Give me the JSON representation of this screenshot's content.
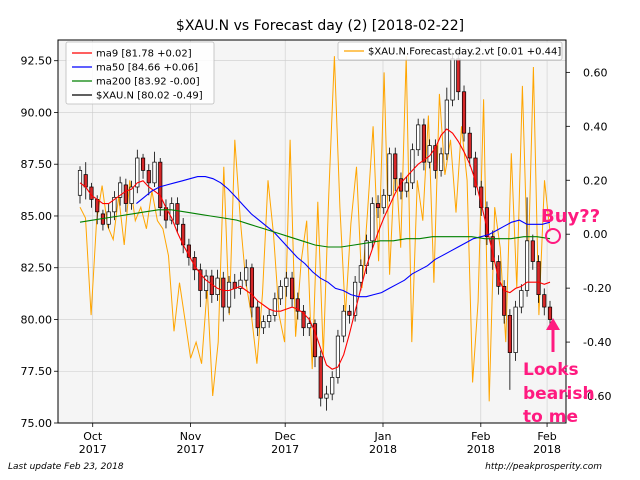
{
  "chart_data": {
    "type": "candlestick",
    "title": "$XAU.N vs Forecast day (2)  [2018-02-22]",
    "y_left": {
      "ylim": [
        75.0,
        93.5
      ],
      "ticks": [
        "75.00",
        "77.50",
        "80.00",
        "82.50",
        "85.00",
        "87.50",
        "90.00",
        "92.50"
      ],
      "tick_values": [
        75,
        77.5,
        80,
        82.5,
        85,
        87.5,
        90,
        92.5
      ]
    },
    "y_right": {
      "ylim": [
        -0.7,
        0.72
      ],
      "ticks": [
        "-0.60",
        "-0.40",
        "-0.20",
        "0.00",
        "0.20",
        "0.40",
        "0.60"
      ],
      "tick_values": [
        -0.6,
        -0.4,
        -0.2,
        0,
        0.2,
        0.4,
        0.6
      ]
    },
    "x_ticks": [
      {
        "month": "Oct",
        "year": "2017",
        "date": "2017-10-01"
      },
      {
        "month": "Nov",
        "year": "2017",
        "date": "2017-11-01"
      },
      {
        "month": "Dec",
        "year": "2017",
        "date": "2017-12-01"
      },
      {
        "month": "Jan",
        "year": "2018",
        "date": "2018-01-01"
      },
      {
        "month": "Feb",
        "year": "2018",
        "date": "2018-02-01"
      },
      {
        "month": "Feb",
        "year": "2018",
        "date": "2018-02-22"
      }
    ],
    "x_range": [
      "2017-09-20",
      "2018-02-28"
    ],
    "grid": true,
    "legend_left": {
      "placement": "upper-left",
      "entries": [
        {
          "label": "ma9 [81.78 +0.02]",
          "color": "#ff0000"
        },
        {
          "label": "ma50 [84.66 +0.06]",
          "color": "#0000ff"
        },
        {
          "label": "ma200 [83.92 -0.00]",
          "color": "#008000"
        },
        {
          "label": "$XAU.N [80.02 -0.49]",
          "color": "#000000"
        }
      ]
    },
    "legend_right": {
      "placement": "upper-right",
      "entries": [
        {
          "label": "$XAU.N.Forecast.day.2.vt [0.01 +0.44]",
          "color": "#ffa500"
        }
      ]
    },
    "candles": [
      [
        86.0,
        87.2,
        85.6,
        87.4
      ],
      [
        87.0,
        86.4,
        85.8,
        87.6
      ],
      [
        86.4,
        85.8,
        85.4,
        86.6
      ],
      [
        85.8,
        85.2,
        84.6,
        86.0
      ],
      [
        85.1,
        84.6,
        84.3,
        85.3
      ],
      [
        84.6,
        85.2,
        84.4,
        85.6
      ],
      [
        85.2,
        85.9,
        84.8,
        86.2
      ],
      [
        85.9,
        86.6,
        85.5,
        86.9
      ],
      [
        86.5,
        85.6,
        85.2,
        86.8
      ],
      [
        85.6,
        86.4,
        85.3,
        86.7
      ],
      [
        86.4,
        87.8,
        86.1,
        88.2
      ],
      [
        87.8,
        87.2,
        86.8,
        88.0
      ],
      [
        87.2,
        86.6,
        86.0,
        87.5
      ],
      [
        86.6,
        87.6,
        86.4,
        88.1
      ],
      [
        87.6,
        85.4,
        85.0,
        87.8
      ],
      [
        85.4,
        84.8,
        84.4,
        85.8
      ],
      [
        84.8,
        85.6,
        84.6,
        85.9
      ],
      [
        85.6,
        84.6,
        84.2,
        85.9
      ],
      [
        84.6,
        83.6,
        83.2,
        84.9
      ],
      [
        83.6,
        83.0,
        82.6,
        83.9
      ],
      [
        83.0,
        82.4,
        81.9,
        83.3
      ],
      [
        82.4,
        81.4,
        80.6,
        82.7
      ],
      [
        81.4,
        82.1,
        81.0,
        82.4
      ],
      [
        82.1,
        81.2,
        80.8,
        82.4
      ],
      [
        81.2,
        82.0,
        80.9,
        82.4
      ],
      [
        82.0,
        80.6,
        79.9,
        82.3
      ],
      [
        80.6,
        81.8,
        80.3,
        82.1
      ],
      [
        81.8,
        81.5,
        81.0,
        82.2
      ],
      [
        81.5,
        81.9,
        81.2,
        82.3
      ],
      [
        81.9,
        82.5,
        81.6,
        82.9
      ],
      [
        82.5,
        80.6,
        80.1,
        82.7
      ],
      [
        80.6,
        79.6,
        79.2,
        80.9
      ],
      [
        79.6,
        79.9,
        79.3,
        80.2
      ],
      [
        79.9,
        80.2,
        79.6,
        80.5
      ],
      [
        80.2,
        81.0,
        79.9,
        81.3
      ],
      [
        81.0,
        81.6,
        80.7,
        81.9
      ],
      [
        81.6,
        82.0,
        81.1,
        82.3
      ],
      [
        82.0,
        81.0,
        80.6,
        82.3
      ],
      [
        81.0,
        80.4,
        80.0,
        81.3
      ],
      [
        80.4,
        79.6,
        79.2,
        80.7
      ],
      [
        79.6,
        79.8,
        79.2,
        80.1
      ],
      [
        79.8,
        78.2,
        77.7,
        80.0
      ],
      [
        78.2,
        76.2,
        75.8,
        78.5
      ],
      [
        76.2,
        76.4,
        75.6,
        76.8
      ],
      [
        76.4,
        77.2,
        76.1,
        77.5
      ],
      [
        77.2,
        79.2,
        76.9,
        79.5
      ],
      [
        79.2,
        80.4,
        78.9,
        80.7
      ],
      [
        80.4,
        80.2,
        79.8,
        80.7
      ],
      [
        80.2,
        81.8,
        79.9,
        82.1
      ],
      [
        81.8,
        82.6,
        81.4,
        82.9
      ],
      [
        82.6,
        83.8,
        82.2,
        84.1
      ],
      [
        83.8,
        85.6,
        83.4,
        85.9
      ],
      [
        85.6,
        85.4,
        84.9,
        86.0
      ],
      [
        85.4,
        86.0,
        85.1,
        86.3
      ],
      [
        86.0,
        88.0,
        85.7,
        88.3
      ],
      [
        88.0,
        86.8,
        86.2,
        88.3
      ],
      [
        86.8,
        86.2,
        85.8,
        87.1
      ],
      [
        86.2,
        86.6,
        85.9,
        86.9
      ],
      [
        86.6,
        88.2,
        86.3,
        88.5
      ],
      [
        88.2,
        89.4,
        87.9,
        89.7
      ],
      [
        89.4,
        87.6,
        87.2,
        89.7
      ],
      [
        87.6,
        88.4,
        87.3,
        88.7
      ],
      [
        88.4,
        87.2,
        86.8,
        88.7
      ],
      [
        87.2,
        88.0,
        86.9,
        88.3
      ],
      [
        88.0,
        90.6,
        87.7,
        91.2
      ],
      [
        90.6,
        92.6,
        90.3,
        92.9
      ],
      [
        92.6,
        91.0,
        90.6,
        92.9
      ],
      [
        91.0,
        89.0,
        88.6,
        91.3
      ],
      [
        89.0,
        87.8,
        87.4,
        89.3
      ],
      [
        87.8,
        86.4,
        86.0,
        88.1
      ],
      [
        86.4,
        85.4,
        85.0,
        86.7
      ],
      [
        85.4,
        84.0,
        83.6,
        85.7
      ],
      [
        84.0,
        82.8,
        82.4,
        84.3
      ],
      [
        82.8,
        81.6,
        81.2,
        83.1
      ],
      [
        81.6,
        80.2,
        79.8,
        81.9
      ],
      [
        80.2,
        78.4,
        76.6,
        80.5
      ],
      [
        78.4,
        80.6,
        78.0,
        80.9
      ],
      [
        80.6,
        81.4,
        80.3,
        81.7
      ],
      [
        81.4,
        83.8,
        81.1,
        85.9
      ],
      [
        83.8,
        82.8,
        82.4,
        84.1
      ],
      [
        82.8,
        81.2,
        80.8,
        83.1
      ],
      [
        81.2,
        80.6,
        80.2,
        81.5
      ],
      [
        80.6,
        80.0,
        79.6,
        80.9
      ]
    ],
    "series": [
      {
        "key": "ma9",
        "color": "#ff0000",
        "axis": "left",
        "values": [
          86.6,
          86.4,
          86.0,
          85.8,
          85.6,
          85.6,
          85.8,
          86.0,
          86.2,
          86.3,
          86.6,
          86.7,
          86.4,
          86.2,
          86.0,
          85.4,
          84.9,
          84.2,
          83.6,
          83.1,
          82.6,
          82.2,
          81.9,
          81.7,
          81.5,
          81.4,
          81.4,
          81.5,
          81.6,
          81.4,
          81.2,
          80.9,
          80.7,
          80.5,
          80.4,
          80.4,
          80.5,
          80.6,
          80.5,
          80.3,
          80.0,
          79.4,
          78.6,
          77.8,
          77.6,
          77.7,
          78.3,
          79.3,
          80.4,
          81.5,
          82.6,
          83.4,
          84.2,
          84.9,
          85.5,
          86.1,
          86.6,
          86.9,
          87.2,
          87.5,
          87.7,
          87.9,
          88.3,
          88.9,
          89.2,
          89.0,
          88.6,
          88.1,
          87.5,
          86.7,
          85.6,
          84.4,
          83.2,
          82.0,
          81.4,
          81.3,
          81.5,
          81.6,
          81.8,
          81.8,
          81.8,
          81.7,
          81.8
        ]
      },
      {
        "key": "ma50",
        "color": "#0000ff",
        "axis": "left",
        "values": [
          85.6,
          85.9,
          86.2,
          86.4,
          86.5,
          86.6,
          86.7,
          86.8,
          86.9,
          86.9,
          86.8,
          86.6,
          86.3,
          85.9,
          85.5,
          85.1,
          84.8,
          84.5,
          84.2,
          83.8,
          83.4,
          83.0,
          82.7,
          82.3,
          82.0,
          81.8,
          81.5,
          81.4,
          81.2,
          81.1,
          81.1,
          81.2,
          81.3,
          81.5,
          81.7,
          81.9,
          82.2,
          82.4,
          82.6,
          82.9,
          83.1,
          83.3,
          83.5,
          83.7,
          83.9,
          84.0,
          84.1,
          84.3,
          84.5,
          84.7,
          84.8,
          84.6,
          84.6,
          84.6,
          84.7
        ]
      },
      {
        "key": "ma200",
        "color": "#008000",
        "axis": "left",
        "values": [
          84.7,
          84.8,
          84.9,
          85.0,
          85.1,
          85.2,
          85.3,
          85.3,
          85.2,
          85.1,
          85.0,
          84.9,
          84.8,
          84.6,
          84.4,
          84.2,
          84.0,
          83.8,
          83.6,
          83.5,
          83.5,
          83.6,
          83.7,
          83.8,
          83.8,
          83.9,
          83.9,
          84.0,
          84.0,
          84.0,
          84.0,
          83.9,
          83.9,
          83.9,
          84.0,
          84.0,
          83.9
        ]
      },
      {
        "key": "forecast",
        "color": "#ffa500",
        "axis": "right",
        "values": [
          0.1,
          0.06,
          -0.3,
          0.05,
          0.18,
          0.03,
          -0.02,
          0.14,
          -0.04,
          0.2,
          0.05,
          0.1,
          0.02,
          0.16,
          0.05,
          0.02,
          -0.08,
          -0.36,
          -0.18,
          -0.32,
          -0.46,
          -0.4,
          -0.48,
          -0.2,
          -0.6,
          -0.4,
          0.25,
          -0.3,
          0.35,
          0.05,
          -0.18,
          -0.3,
          -0.48,
          -0.22,
          0.2,
          0.0,
          -0.3,
          -0.4,
          0.35,
          -0.38,
          -0.1,
          0.05,
          -0.5,
          0.12,
          -0.45,
          0.15,
          0.66,
          0.1,
          -0.3,
          0.04,
          0.25,
          -0.2,
          0.08,
          0.4,
          -0.1,
          0.6,
          -0.15,
          0.3,
          -0.05,
          0.66,
          -0.4,
          0.2,
          0.05,
          0.44,
          -0.18,
          0.52,
          0.22,
          0.35,
          0.08,
          0.4,
          0.2,
          -0.55,
          -0.25,
          0.5,
          -0.62,
          0.1,
          -0.05,
          -0.4,
          0.3,
          -0.2,
          0.55,
          -0.15,
          0.62,
          -0.3,
          0.2,
          0.01
        ]
      }
    ],
    "annotations": [
      {
        "text": "Buy??"
      },
      {
        "text": "Looks"
      },
      {
        "text": "bearish"
      },
      {
        "text": "to me"
      }
    ]
  },
  "footer": {
    "left": "Last update Feb 23, 2018",
    "right": "http://peakprosperity.com"
  },
  "colors": {
    "annotation": "#ff1a80",
    "candle_up": "#ffffff",
    "candle_down": "#d62728",
    "plot_bg": "#f5f5f5",
    "grid": "#cccccc"
  }
}
